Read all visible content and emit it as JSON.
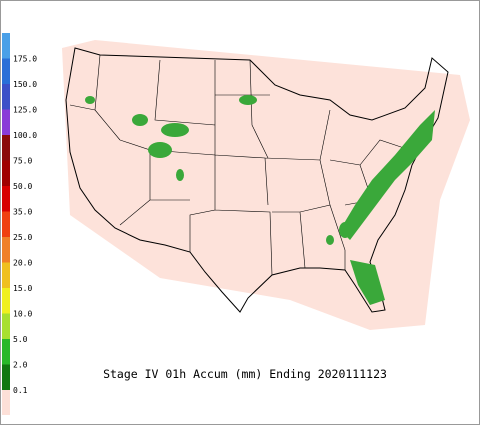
{
  "legend": {
    "labels": [
      "175.0",
      "150.0",
      "125.0",
      "100.0",
      "75.0",
      "50.0",
      "35.0",
      "25.0",
      "20.0",
      "15.0",
      "10.0",
      "5.0",
      "2.0",
      "0.1"
    ],
    "colors": [
      "#4aa0e8",
      "#2a6fd8",
      "#3c50c8",
      "#8a3cd8",
      "#8b0a0a",
      "#a00000",
      "#d80000",
      "#f04010",
      "#f08028",
      "#f0c020",
      "#f0f020",
      "#a8e030",
      "#28b828",
      "#107810",
      "#fde0d8"
    ]
  },
  "title": "Stage IV 01h Accum (mm) Ending 2020111123"
}
